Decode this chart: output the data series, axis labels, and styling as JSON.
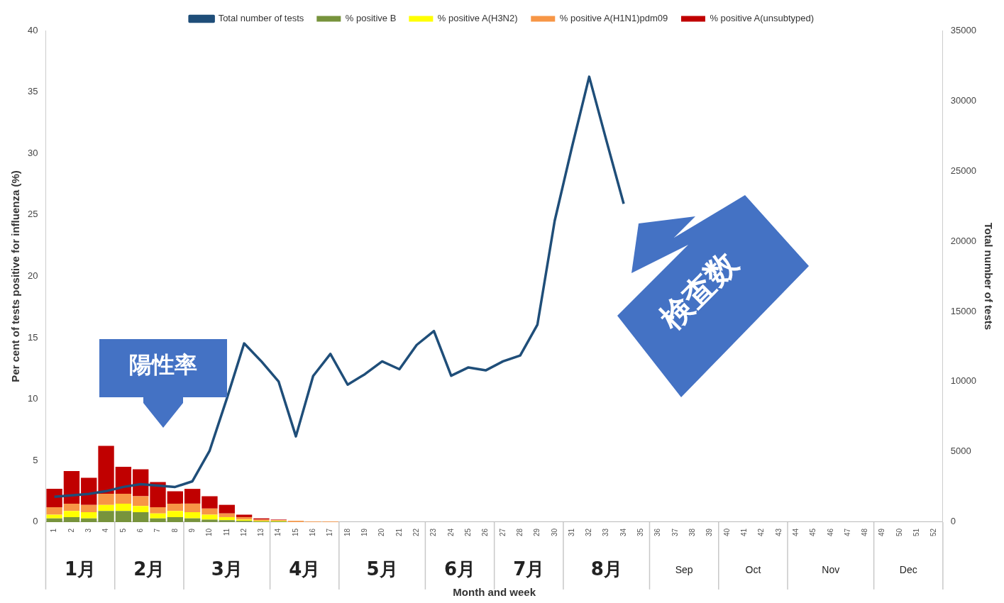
{
  "chart_data": {
    "type": "bar",
    "stacked": true,
    "xlabel": "Month and week",
    "ylabel": "Per cent of tests positive for influenza (%)",
    "y2label": "Total number of tests",
    "categories": [
      "1",
      "2",
      "3",
      "4",
      "5",
      "6",
      "7",
      "8",
      "9",
      "10",
      "11",
      "12",
      "13",
      "14",
      "15",
      "16",
      "17",
      "18",
      "19",
      "20",
      "21",
      "22",
      "23",
      "24",
      "25",
      "26",
      "27",
      "28",
      "29",
      "30",
      "31",
      "32",
      "33",
      "34",
      "35",
      "36",
      "37",
      "38",
      "39",
      "40",
      "41",
      "42",
      "43",
      "44",
      "45",
      "46",
      "47",
      "48",
      "49",
      "50",
      "51",
      "52"
    ],
    "series": [
      {
        "name": "% positive B",
        "color": "#77933c",
        "values": [
          0.3,
          0.4,
          0.3,
          0.9,
          0.9,
          0.8,
          0.3,
          0.4,
          0.3,
          0.2,
          0.15,
          0.1,
          0.05,
          0.05,
          null,
          null,
          null,
          0,
          0,
          0,
          0,
          0,
          0,
          0,
          0,
          0,
          0,
          0,
          0,
          0,
          0,
          0,
          0,
          0,
          null,
          null,
          null,
          null,
          null,
          null,
          null,
          null,
          null,
          null,
          null,
          null,
          null,
          null,
          null,
          null,
          null,
          null
        ]
      },
      {
        "name": "% positive A(H3N2)",
        "color": "#ffff00",
        "values": [
          0.3,
          0.5,
          0.5,
          0.5,
          0.6,
          0.5,
          0.4,
          0.5,
          0.5,
          0.4,
          0.25,
          0.1,
          0.05,
          0.05,
          null,
          null,
          null,
          0,
          0,
          0,
          0,
          0,
          0,
          0,
          0,
          0,
          0,
          0,
          0,
          0,
          0,
          0,
          0,
          0,
          null,
          null,
          null,
          null,
          null,
          null,
          null,
          null,
          null,
          null,
          null,
          null,
          null,
          null,
          null,
          null,
          null,
          null
        ]
      },
      {
        "name": "% positive A(H1N1)pdm09",
        "color": "#f79646",
        "values": [
          0.6,
          0.6,
          0.6,
          0.9,
          0.8,
          0.8,
          0.5,
          0.6,
          0.7,
          0.5,
          0.3,
          0.2,
          0.1,
          0.05,
          0.1,
          0.05,
          0.05,
          0,
          0,
          0,
          0,
          0,
          0,
          0,
          0,
          0,
          0,
          0,
          0,
          0,
          0,
          0,
          0,
          0,
          null,
          null,
          null,
          null,
          null,
          null,
          null,
          null,
          null,
          null,
          null,
          null,
          null,
          null,
          null,
          null,
          null,
          null
        ]
      },
      {
        "name": "% positive A(unsubtyped)",
        "color": "#c00000",
        "values": [
          1.5,
          2.65,
          2.2,
          3.9,
          2.2,
          2.2,
          2.05,
          1.0,
          1.2,
          1.0,
          0.7,
          0.2,
          0.1,
          0.05,
          null,
          null,
          null,
          0,
          0,
          0,
          0,
          0,
          0,
          0,
          0,
          0,
          0,
          0,
          0,
          0,
          0,
          0,
          0,
          0,
          null,
          null,
          null,
          null,
          null,
          null,
          null,
          null,
          null,
          null,
          null,
          null,
          null,
          null,
          null,
          null,
          null,
          null
        ]
      },
      {
        "name": "Total number of tests",
        "type": "line",
        "axis": "y2",
        "color": "#1f4e79",
        "values": [
          1800,
          1900,
          2000,
          2200,
          2500,
          2700,
          2600,
          2500,
          2900,
          5080,
          8800,
          12720,
          11440,
          10000,
          6100,
          10400,
          11970,
          9780,
          10530,
          11440,
          10880,
          12610,
          13600,
          10420,
          11010,
          10800,
          11440,
          11860,
          14060,
          21450,
          26690,
          31710,
          27150,
          22660,
          null,
          null,
          null,
          null,
          null,
          null,
          null,
          null,
          null,
          null,
          null,
          null,
          null,
          null,
          null,
          null,
          null,
          null
        ]
      }
    ],
    "ylim": [
      0,
      40
    ],
    "yticks": [
      0,
      5,
      10,
      15,
      20,
      25,
      30,
      35,
      40
    ],
    "y2lim": [
      0,
      35000
    ],
    "y2ticks": [
      0,
      5000,
      10000,
      15000,
      20000,
      25000,
      30000,
      35000
    ],
    "grid": false,
    "legend": "top",
    "marker": "none",
    "annotations": [
      "1月",
      "2月",
      "3月",
      "4月",
      "5月",
      "6月",
      "7月",
      "8月",
      "Sep",
      "Oct",
      "Nov",
      "Dec",
      "陽性率",
      "検査数"
    ]
  }
}
